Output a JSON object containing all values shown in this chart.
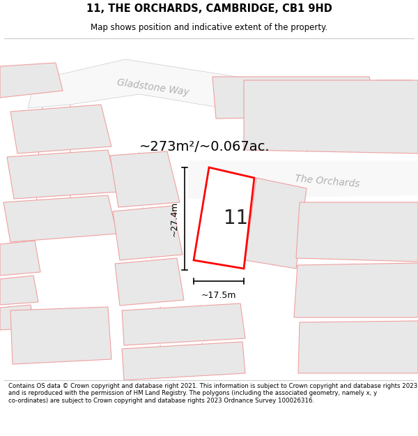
{
  "title_line1": "11, THE ORCHARDS, CAMBRIDGE, CB1 9HD",
  "title_line2": "Map shows position and indicative extent of the property.",
  "area_text": "~273m²/~0.067ac.",
  "property_number": "11",
  "dim_vertical": "~27.4m",
  "dim_horizontal": "~17.5m",
  "street_gladstone": "Gladstone Way",
  "street_orchards": "The Orchards",
  "footer_text": "Contains OS data © Crown copyright and database right 2021. This information is subject to Crown copyright and database rights 2023 and is reproduced with the permission of HM Land Registry. The polygons (including the associated geometry, namely x, y co-ordinates) are subject to Crown copyright and database rights 2023 Ordnance Survey 100026316.",
  "bg_color": "#ffffff",
  "map_bg": "#ffffff",
  "building_fill": "#e8e8e8",
  "building_edge": "#f0a0a0",
  "road_fill": "#f0f0f0",
  "road_edge": "#d0d0d0",
  "property_fill": "#ffffff",
  "property_edge": "#ff0000",
  "dim_color": "#000000",
  "street_label_color": "#b0b0b0",
  "title_color": "#000000",
  "footer_color": "#000000",
  "map_outline": "#cccccc"
}
